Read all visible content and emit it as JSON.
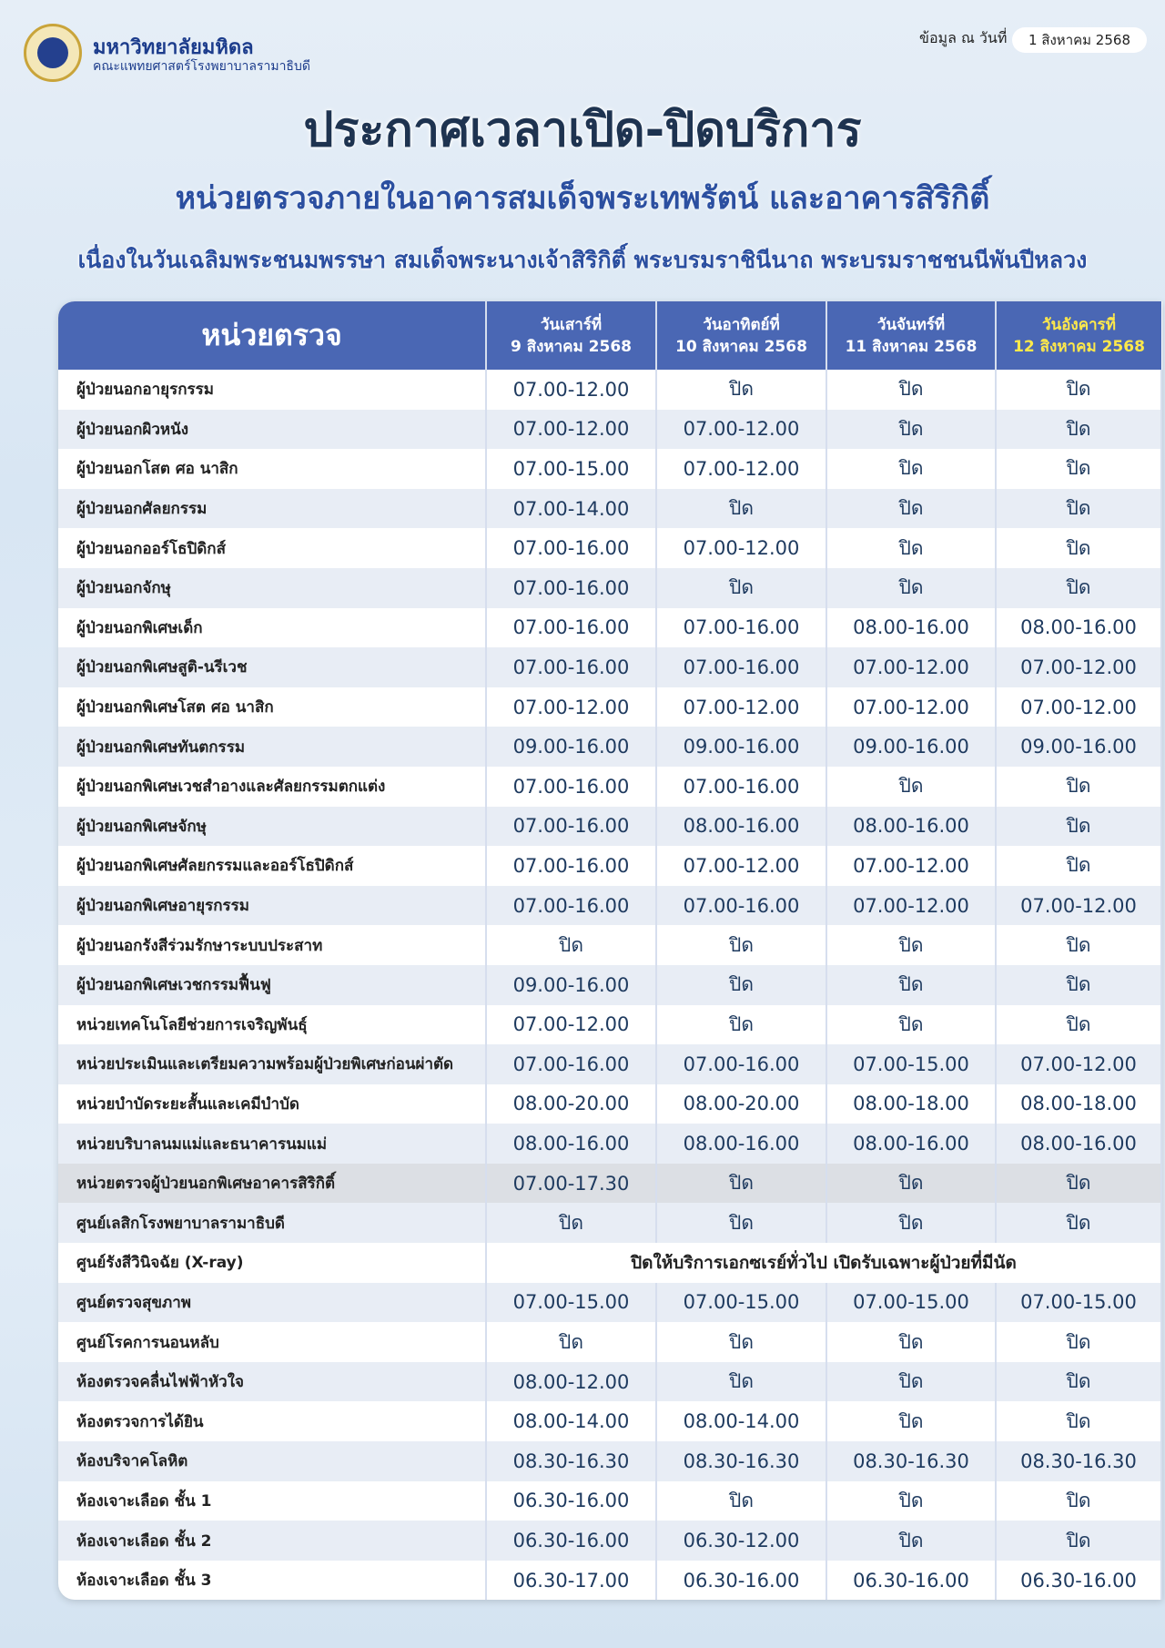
{
  "header": {
    "org_name": "มหาวิทยาลัยมหิดล",
    "org_sub": "คณะแพทยศาสตร์โรงพยาบาลรามาธิบดี",
    "date_label": "ข้อมูล ณ วันที่",
    "date_value": "1 สิงหาคม 2568",
    "title": "ประกาศเวลาเปิด-ปิดบริการ",
    "subtitle": "หน่วยตรวจภายในอาคารสมเด็จพระเทพรัตน์ และอาคารสิริกิติ์",
    "occasion": "เนื่องในวันเฉลิมพระชนมพรรษา สมเด็จพระนางเจ้าสิริกิติ์ พระบรมราชินีนาถ พระบรมราชชนนีพันปีหลวง"
  },
  "table": {
    "unit_header": "หน่วยตรวจ",
    "columns": [
      {
        "day": "วันเสาร์ที่",
        "date": "9 สิงหาคม 2568"
      },
      {
        "day": "วันอาทิตย์ที่",
        "date": "10 สิงหาคม 2568"
      },
      {
        "day": "วันจันทร์ที่",
        "date": "11 สิงหาคม 2568"
      },
      {
        "day": "วันอังคารที่",
        "date": "12 สิงหาคม 2568"
      }
    ],
    "rows": [
      {
        "unit": "ผู้ป่วยนอกอายุรกรรม",
        "hours": [
          "07.00-12.00",
          "ปิด",
          "ปิด",
          "ปิด"
        ]
      },
      {
        "unit": "ผู้ป่วยนอกผิวหนัง",
        "hours": [
          "07.00-12.00",
          "07.00-12.00",
          "ปิด",
          "ปิด"
        ]
      },
      {
        "unit": "ผู้ป่วยนอกโสต ศอ นาสิก",
        "hours": [
          "07.00-15.00",
          "07.00-12.00",
          "ปิด",
          "ปิด"
        ]
      },
      {
        "unit": "ผู้ป่วยนอกศัลยกรรม",
        "hours": [
          "07.00-14.00",
          "ปิด",
          "ปิด",
          "ปิด"
        ]
      },
      {
        "unit": "ผู้ป่วยนอกออร์โธปิดิกส์",
        "hours": [
          "07.00-16.00",
          "07.00-12.00",
          "ปิด",
          "ปิด"
        ]
      },
      {
        "unit": "ผู้ป่วยนอกจักษุ",
        "hours": [
          "07.00-16.00",
          "ปิด",
          "ปิด",
          "ปิด"
        ]
      },
      {
        "unit": "ผู้ป่วยนอกพิเศษเด็ก",
        "hours": [
          "07.00-16.00",
          "07.00-16.00",
          "08.00-16.00",
          "08.00-16.00"
        ]
      },
      {
        "unit": "ผู้ป่วยนอกพิเศษสูติ-นรีเวช",
        "hours": [
          "07.00-16.00",
          "07.00-16.00",
          "07.00-12.00",
          "07.00-12.00"
        ]
      },
      {
        "unit": "ผู้ป่วยนอกพิเศษโสต ศอ นาสิก",
        "hours": [
          "07.00-12.00",
          "07.00-12.00",
          "07.00-12.00",
          "07.00-12.00"
        ]
      },
      {
        "unit": "ผู้ป่วยนอกพิเศษทันตกรรม",
        "hours": [
          "09.00-16.00",
          "09.00-16.00",
          "09.00-16.00",
          "09.00-16.00"
        ]
      },
      {
        "unit": "ผู้ป่วยนอกพิเศษเวชสำอางและศัลยกรรมตกแต่ง",
        "hours": [
          "07.00-16.00",
          "07.00-16.00",
          "ปิด",
          "ปิด"
        ]
      },
      {
        "unit": "ผู้ป่วยนอกพิเศษจักษุ",
        "hours": [
          "07.00-16.00",
          "08.00-16.00",
          "08.00-16.00",
          "ปิด"
        ]
      },
      {
        "unit": "ผู้ป่วยนอกพิเศษศัลยกรรมและออร์โธปิดิกส์",
        "hours": [
          "07.00-16.00",
          "07.00-12.00",
          "07.00-12.00",
          "ปิด"
        ]
      },
      {
        "unit": "ผู้ป่วยนอกพิเศษอายุรกรรม",
        "hours": [
          "07.00-16.00",
          "07.00-16.00",
          "07.00-12.00",
          "07.00-12.00"
        ]
      },
      {
        "unit": "ผู้ป่วยนอกรังสีร่วมรักษาระบบประสาท",
        "hours": [
          "ปิด",
          "ปิด",
          "ปิด",
          "ปิด"
        ]
      },
      {
        "unit": "ผู้ป่วยนอกพิเศษเวชกรรมฟื้นฟู",
        "hours": [
          "09.00-16.00",
          "ปิด",
          "ปิด",
          "ปิด"
        ]
      },
      {
        "unit": "หน่วยเทคโนโลยีช่วยการเจริญพันธุ์",
        "hours": [
          "07.00-12.00",
          "ปิด",
          "ปิด",
          "ปิด"
        ]
      },
      {
        "unit": "หน่วยประเมินและเตรียมความพร้อมผู้ป่วยพิเศษก่อนผ่าตัด",
        "hours": [
          "07.00-16.00",
          "07.00-16.00",
          "07.00-15.00",
          "07.00-12.00"
        ]
      },
      {
        "unit": "หน่วยบำบัดระยะสั้นและเคมีบำบัด",
        "hours": [
          "08.00-20.00",
          "08.00-20.00",
          "08.00-18.00",
          "08.00-18.00"
        ]
      },
      {
        "unit": "หน่วยบริบาลนมแม่และธนาคารนมแม่",
        "hours": [
          "08.00-16.00",
          "08.00-16.00",
          "08.00-16.00",
          "08.00-16.00"
        ]
      },
      {
        "unit": "หน่วยตรวจผู้ป่วยนอกพิเศษอาคารสิริกิติ์",
        "hours": [
          "07.00-17.30",
          "ปิด",
          "ปิด",
          "ปิด"
        ]
      },
      {
        "unit": "ศูนย์เลสิกโรงพยาบาลรามาธิบดี",
        "hours": [
          "ปิด",
          "ปิด",
          "ปิด",
          "ปิด"
        ]
      },
      {
        "unit": "ศูนย์รังสีวินิจฉัย (X-ray)",
        "note": "ปิดให้บริการเอกซเรย์ทั่วไป เปิดรับเฉพาะผู้ป่วยที่มีนัด"
      },
      {
        "unit": "ศูนย์ตรวจสุขภาพ",
        "hours": [
          "07.00-15.00",
          "07.00-15.00",
          "07.00-15.00",
          "07.00-15.00"
        ]
      },
      {
        "unit": "ศูนย์โรคการนอนหลับ",
        "hours": [
          "ปิด",
          "ปิด",
          "ปิด",
          "ปิด"
        ]
      },
      {
        "unit": "ห้องตรวจคลื่นไฟฟ้าหัวใจ",
        "hours": [
          "08.00-12.00",
          "ปิด",
          "ปิด",
          "ปิด"
        ]
      },
      {
        "unit": "ห้องตรวจการได้ยิน",
        "hours": [
          "08.00-14.00",
          "08.00-14.00",
          "ปิด",
          "ปิด"
        ]
      },
      {
        "unit": "ห้องบริจาคโลหิต",
        "hours": [
          "08.30-16.30",
          "08.30-16.30",
          "08.30-16.30",
          "08.30-16.30"
        ]
      },
      {
        "unit": "ห้องเจาะเลือด ชั้น 1",
        "hours": [
          "06.30-16.00",
          "ปิด",
          "ปิด",
          "ปิด"
        ]
      },
      {
        "unit": "ห้องเจาะเลือด ชั้น 2",
        "hours": [
          "06.30-16.00",
          "06.30-12.00",
          "ปิด",
          "ปิด"
        ]
      },
      {
        "unit": "ห้องเจาะเลือด ชั้น 3",
        "hours": [
          "06.30-17.00",
          "06.30-16.00",
          "06.30-16.00",
          "06.30-16.00"
        ]
      }
    ]
  }
}
